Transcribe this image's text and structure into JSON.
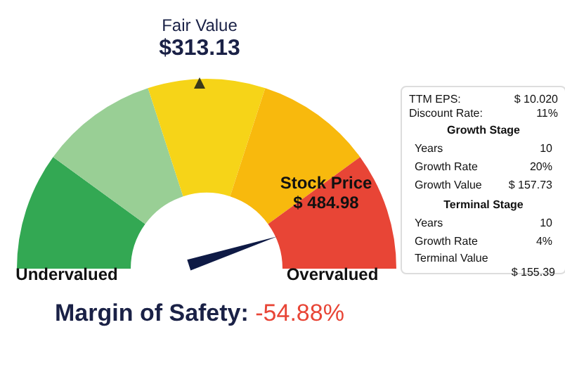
{
  "chart_data": [
    {
      "type": "donut",
      "title": "Fair Value",
      "subtitle": "$313.13",
      "categories": [
        "Undervalued",
        null,
        null,
        null,
        "Overvalued"
      ],
      "values": [
        20,
        20,
        20,
        20,
        20
      ],
      "colors": [
        "#33a853",
        "#99cf95",
        "#f6d418",
        "#f8b90d",
        "#e84536"
      ],
      "needle": "Overvalued",
      "annotations": [
        "Stock Price",
        "$ 484.98",
        "Margin of Safety:",
        "-54.88%"
      ]
    },
    {
      "type": "other",
      "annotations": [
        "TTM EPS:",
        "$ 10.020",
        "Discount Rate:",
        "11%",
        "Growth Stage",
        "Years",
        "10",
        "Growth Rate",
        "20%",
        "Growth Value",
        "$ 157.73",
        "Terminal Stage",
        "Years",
        "10",
        "Growth Rate",
        "4%",
        "Terminal Value",
        "$ 155.39"
      ]
    }
  ]
}
